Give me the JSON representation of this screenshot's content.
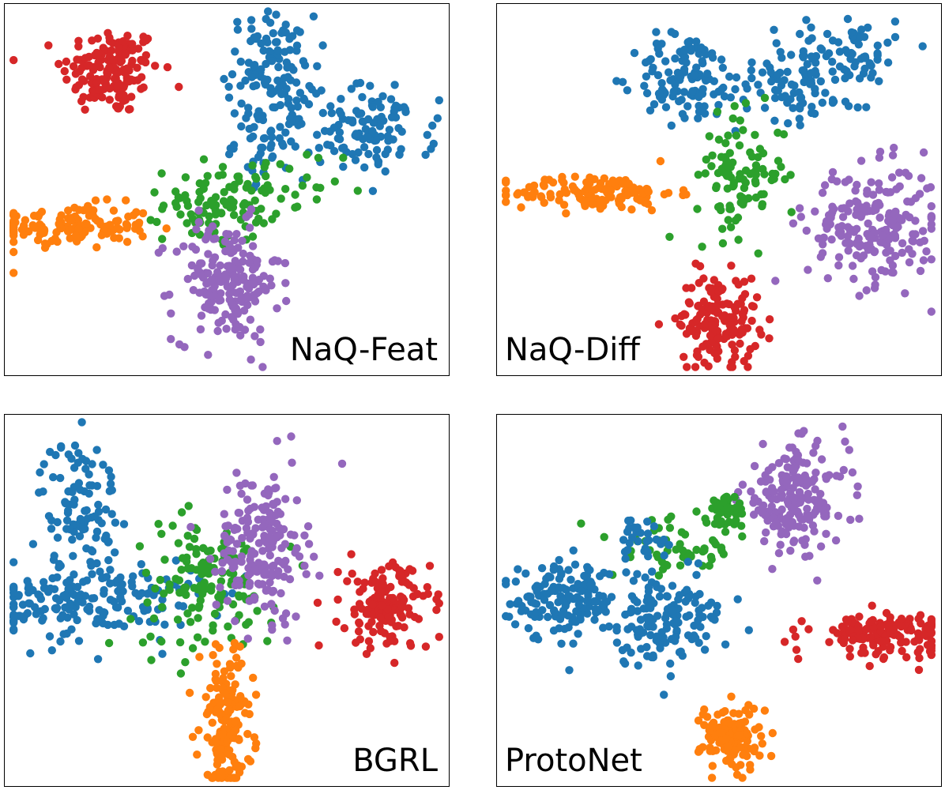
{
  "colors": {
    "class0": "#1f77b4",
    "class1": "#ff7f0e",
    "class2": "#2ca02c",
    "class3": "#d62728",
    "class4": "#9467bd"
  },
  "chart_data": [
    {
      "type": "scatter",
      "title": "NaQ-Feat",
      "grid": false,
      "clusters": [
        {
          "class": "class3",
          "cx": 0.24,
          "cy": 0.82,
          "sx": 0.055,
          "sy": 0.06,
          "n": 150
        },
        {
          "class": "class1",
          "cx": 0.15,
          "cy": 0.4,
          "sx": 0.09,
          "sy": 0.03,
          "n": 140
        },
        {
          "class": "class0",
          "cx": 0.6,
          "cy": 0.83,
          "sx": 0.05,
          "sy": 0.07,
          "n": 110
        },
        {
          "class": "class0",
          "cx": 0.6,
          "cy": 0.63,
          "sx": 0.04,
          "sy": 0.05,
          "n": 55
        },
        {
          "class": "class0",
          "cx": 0.83,
          "cy": 0.66,
          "sx": 0.07,
          "sy": 0.06,
          "n": 110
        },
        {
          "class": "class2",
          "cx": 0.48,
          "cy": 0.46,
          "sx": 0.06,
          "sy": 0.05,
          "n": 90
        },
        {
          "class": "class2",
          "cx": 0.6,
          "cy": 0.49,
          "sx": 0.08,
          "sy": 0.06,
          "n": 30
        },
        {
          "class": "class4",
          "cx": 0.5,
          "cy": 0.25,
          "sx": 0.06,
          "sy": 0.08,
          "n": 190
        }
      ]
    },
    {
      "type": "scatter",
      "title": "NaQ-Diff",
      "grid": false,
      "clusters": [
        {
          "class": "class1",
          "cx": 0.22,
          "cy": 0.49,
          "sx": 0.09,
          "sy": 0.025,
          "n": 130
        },
        {
          "class": "class0",
          "cx": 0.43,
          "cy": 0.8,
          "sx": 0.06,
          "sy": 0.06,
          "n": 110
        },
        {
          "class": "class0",
          "cx": 0.66,
          "cy": 0.8,
          "sx": 0.06,
          "sy": 0.06,
          "n": 80
        },
        {
          "class": "class0",
          "cx": 0.8,
          "cy": 0.86,
          "sx": 0.05,
          "sy": 0.06,
          "n": 70
        },
        {
          "class": "class2",
          "cx": 0.55,
          "cy": 0.54,
          "sx": 0.05,
          "sy": 0.08,
          "n": 100
        },
        {
          "class": "class4",
          "cx": 0.85,
          "cy": 0.4,
          "sx": 0.075,
          "sy": 0.08,
          "n": 210
        },
        {
          "class": "class3",
          "cx": 0.5,
          "cy": 0.15,
          "sx": 0.045,
          "sy": 0.06,
          "n": 160
        }
      ]
    },
    {
      "type": "scatter",
      "title": "BGRL",
      "grid": false,
      "clusters": [
        {
          "class": "class0",
          "cx": 0.17,
          "cy": 0.76,
          "sx": 0.045,
          "sy": 0.09,
          "n": 100
        },
        {
          "class": "class0",
          "cx": 0.2,
          "cy": 0.5,
          "sx": 0.12,
          "sy": 0.055,
          "n": 190
        },
        {
          "class": "class2",
          "cx": 0.45,
          "cy": 0.54,
          "sx": 0.08,
          "sy": 0.09,
          "n": 130
        },
        {
          "class": "class4",
          "cx": 0.58,
          "cy": 0.65,
          "sx": 0.05,
          "sy": 0.1,
          "n": 190
        },
        {
          "class": "class3",
          "cx": 0.86,
          "cy": 0.48,
          "sx": 0.05,
          "sy": 0.06,
          "n": 150
        },
        {
          "class": "class1",
          "cx": 0.5,
          "cy": 0.17,
          "sx": 0.03,
          "sy": 0.1,
          "n": 170
        }
      ]
    },
    {
      "type": "scatter",
      "title": "ProtoNet",
      "grid": false,
      "clusters": [
        {
          "class": "class4",
          "cx": 0.67,
          "cy": 0.77,
          "sx": 0.06,
          "sy": 0.07,
          "n": 190
        },
        {
          "class": "class2",
          "cx": 0.52,
          "cy": 0.74,
          "sx": 0.02,
          "sy": 0.02,
          "n": 45
        },
        {
          "class": "class2",
          "cx": 0.4,
          "cy": 0.64,
          "sx": 0.07,
          "sy": 0.04,
          "n": 60
        },
        {
          "class": "class0",
          "cx": 0.15,
          "cy": 0.5,
          "sx": 0.06,
          "sy": 0.045,
          "n": 130
        },
        {
          "class": "class0",
          "cx": 0.36,
          "cy": 0.45,
          "sx": 0.08,
          "sy": 0.06,
          "n": 160
        },
        {
          "class": "class0",
          "cx": 0.33,
          "cy": 0.66,
          "sx": 0.025,
          "sy": 0.03,
          "n": 30
        },
        {
          "class": "class3",
          "cx": 0.87,
          "cy": 0.41,
          "sx": 0.08,
          "sy": 0.028,
          "n": 150
        },
        {
          "class": "class1",
          "cx": 0.53,
          "cy": 0.13,
          "sx": 0.035,
          "sy": 0.045,
          "n": 130
        }
      ]
    }
  ]
}
